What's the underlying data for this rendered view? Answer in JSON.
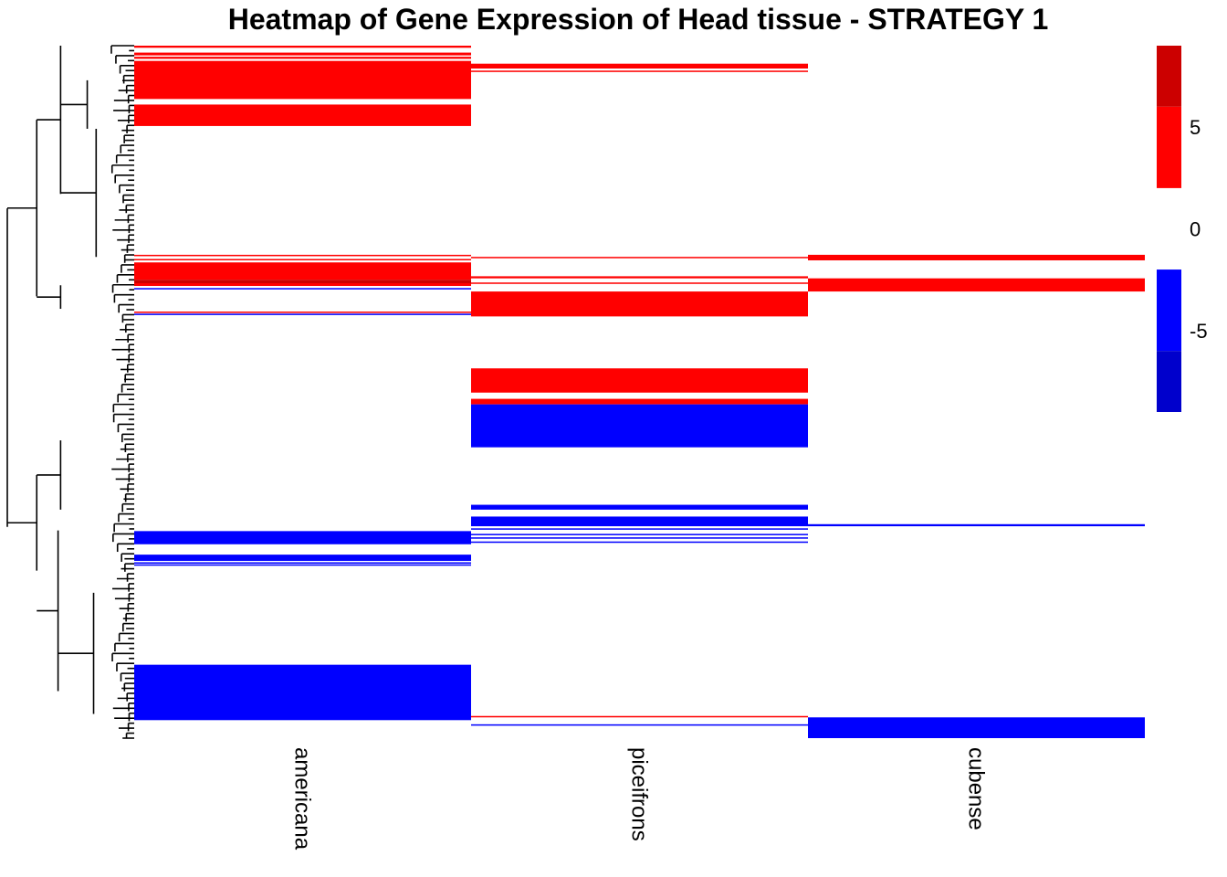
{
  "chart_data": {
    "type": "heatmap",
    "title": "Heatmap of Gene Expression of Head tissue - STRATEGY 1",
    "columns": [
      "americana",
      "piceifrons",
      "cubense"
    ],
    "legend": {
      "ticks": [
        5,
        0,
        -5
      ],
      "scale": [
        {
          "from": 6,
          "to": 9,
          "color": "#cc0000"
        },
        {
          "from": 2,
          "to": 6,
          "color": "#ff0000"
        },
        {
          "from": -2,
          "to": 2,
          "color": "#ffffff"
        },
        {
          "from": -6,
          "to": -2,
          "color": "#0000ff"
        },
        {
          "from": -9,
          "to": -6,
          "color": "#0000cc"
        }
      ]
    },
    "row_range": [
      0,
      1
    ],
    "blocks": [
      {
        "col": 0,
        "start": 0.0,
        "end": 0.003,
        "color": "#ff0000"
      },
      {
        "col": 0,
        "start": 0.01,
        "end": 0.014,
        "color": "#ff0000"
      },
      {
        "col": 0,
        "start": 0.016,
        "end": 0.019,
        "color": "#ff0000"
      },
      {
        "col": 0,
        "start": 0.022,
        "end": 0.077,
        "color": "#ff0000"
      },
      {
        "col": 0,
        "start": 0.085,
        "end": 0.116,
        "color": "#ff0000"
      },
      {
        "col": 0,
        "start": 0.302,
        "end": 0.304,
        "color": "#ff0000"
      },
      {
        "col": 0,
        "start": 0.308,
        "end": 0.31,
        "color": "#ff0000"
      },
      {
        "col": 0,
        "start": 0.313,
        "end": 0.338,
        "color": "#ff0000"
      },
      {
        "col": 0,
        "start": 0.338,
        "end": 0.343,
        "color": "#cc0000"
      },
      {
        "col": 0,
        "start": 0.343,
        "end": 0.347,
        "color": "#ff0000"
      },
      {
        "col": 0,
        "start": 0.35,
        "end": 0.352,
        "color": "#0000ff"
      },
      {
        "col": 0,
        "start": 0.384,
        "end": 0.386,
        "color": "#ff0000"
      },
      {
        "col": 0,
        "start": 0.387,
        "end": 0.389,
        "color": "#0000ff"
      },
      {
        "col": 0,
        "start": 0.701,
        "end": 0.72,
        "color": "#0000ff"
      },
      {
        "col": 0,
        "start": 0.735,
        "end": 0.744,
        "color": "#0000ff"
      },
      {
        "col": 0,
        "start": 0.746,
        "end": 0.748,
        "color": "#0000ff"
      },
      {
        "col": 0,
        "start": 0.749,
        "end": 0.751,
        "color": "#0000ff"
      },
      {
        "col": 0,
        "start": 0.894,
        "end": 0.974,
        "color": "#0000ff"
      },
      {
        "col": 1,
        "start": 0.026,
        "end": 0.033,
        "color": "#ff0000"
      },
      {
        "col": 1,
        "start": 0.036,
        "end": 0.038,
        "color": "#ff0000"
      },
      {
        "col": 1,
        "start": 0.305,
        "end": 0.307,
        "color": "#ff0000"
      },
      {
        "col": 1,
        "start": 0.333,
        "end": 0.336,
        "color": "#ff0000"
      },
      {
        "col": 1,
        "start": 0.342,
        "end": 0.344,
        "color": "#ff0000"
      },
      {
        "col": 1,
        "start": 0.355,
        "end": 0.391,
        "color": "#ff0000"
      },
      {
        "col": 1,
        "start": 0.466,
        "end": 0.501,
        "color": "#ff0000"
      },
      {
        "col": 1,
        "start": 0.51,
        "end": 0.518,
        "color": "#ff0000"
      },
      {
        "col": 1,
        "start": 0.518,
        "end": 0.58,
        "color": "#0000ff"
      },
      {
        "col": 1,
        "start": 0.663,
        "end": 0.67,
        "color": "#0000ff"
      },
      {
        "col": 1,
        "start": 0.68,
        "end": 0.694,
        "color": "#0000ff"
      },
      {
        "col": 1,
        "start": 0.697,
        "end": 0.699,
        "color": "#0000ff"
      },
      {
        "col": 1,
        "start": 0.705,
        "end": 0.707,
        "color": "#0000ff"
      },
      {
        "col": 1,
        "start": 0.71,
        "end": 0.712,
        "color": "#0000ff"
      },
      {
        "col": 1,
        "start": 0.716,
        "end": 0.718,
        "color": "#0000ff"
      },
      {
        "col": 1,
        "start": 0.968,
        "end": 0.97,
        "color": "#ff0000"
      },
      {
        "col": 1,
        "start": 0.98,
        "end": 0.982,
        "color": "#0000ff"
      },
      {
        "col": 2,
        "start": 0.302,
        "end": 0.31,
        "color": "#ff0000"
      },
      {
        "col": 2,
        "start": 0.336,
        "end": 0.355,
        "color": "#ff0000"
      },
      {
        "col": 2,
        "start": 0.691,
        "end": 0.694,
        "color": "#0000ff"
      },
      {
        "col": 2,
        "start": 0.97,
        "end": 1.0,
        "color": "#0000ff"
      }
    ],
    "dendrogram": {
      "side": "left",
      "merges": [
        {
          "x": 0.0,
          "y1": 0.235,
          "y2": 0.695
        },
        {
          "x": 0.232,
          "y1": 0.107,
          "y2": 0.362
        },
        {
          "x": 0.42,
          "y1": 0.0,
          "y2": 0.214
        },
        {
          "x": 0.42,
          "y1": 0.346,
          "y2": 0.38
        },
        {
          "x": 0.232,
          "y1": 0.62,
          "y2": 0.758
        },
        {
          "x": 0.42,
          "y1": 0.57,
          "y2": 0.67
        },
        {
          "x": 0.4,
          "y1": 0.7,
          "y2": 0.932
        },
        {
          "x": 0.63,
          "y1": 0.05,
          "y2": 0.12
        },
        {
          "x": 0.7,
          "y1": 0.12,
          "y2": 0.305
        },
        {
          "x": 0.68,
          "y1": 0.79,
          "y2": 0.965
        }
      ]
    }
  }
}
